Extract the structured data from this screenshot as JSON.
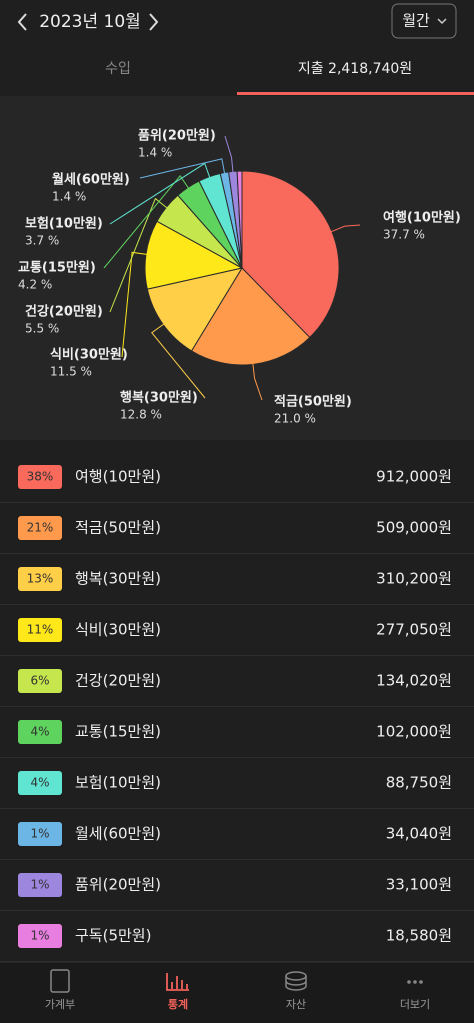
{
  "header": {
    "month": "2023년 10월",
    "period": "월간"
  },
  "tabs": {
    "income": "수입",
    "expense": "지출  2,418,740원"
  },
  "chart_data": {
    "type": "pie",
    "categories": [
      "여행(10만원)",
      "적금(50만원)",
      "행복(30만원)",
      "식비(30만원)",
      "건강(20만원)",
      "교통(15만원)",
      "보험(10만원)",
      "월세(60만원)",
      "품위(20만원)",
      null
    ],
    "values": [
      37.7,
      21.0,
      12.8,
      11.5,
      5.5,
      4.2,
      3.7,
      1.4,
      1.4,
      0.8
    ],
    "value_labels": [
      "37.7 %",
      "21.0 %",
      "12.8 %",
      "11.5 %",
      "5.5 %",
      "4.2 %",
      "3.7 %",
      "1.4 %",
      "1.4 %",
      null
    ],
    "colors": [
      "#fa6a5c",
      "#ff9a4c",
      "#ffcf48",
      "#ffe81a",
      "#c5e64c",
      "#5ed35e",
      "#5fe5d2",
      "#6cb6e6",
      "#9c86de",
      "#e77ee0"
    ]
  },
  "list": [
    {
      "badge": "38%",
      "name": "여행(10만원)",
      "amount": "912,000원",
      "color": "#fa6a5c"
    },
    {
      "badge": "21%",
      "name": "적금(50만원)",
      "amount": "509,000원",
      "color": "#ff9a4c"
    },
    {
      "badge": "13%",
      "name": "행복(30만원)",
      "amount": "310,200원",
      "color": "#ffcf48"
    },
    {
      "badge": "11%",
      "name": "식비(30만원)",
      "amount": "277,050원",
      "color": "#ffe81a"
    },
    {
      "badge": "6%",
      "name": "건강(20만원)",
      "amount": "134,020원",
      "color": "#c5e64c"
    },
    {
      "badge": "4%",
      "name": "교통(15만원)",
      "amount": "102,000원",
      "color": "#5ed35e"
    },
    {
      "badge": "4%",
      "name": "보험(10만원)",
      "amount": "88,750원",
      "color": "#5fe5d2"
    },
    {
      "badge": "1%",
      "name": "월세(60만원)",
      "amount": "34,040원",
      "color": "#6cb6e6"
    },
    {
      "badge": "1%",
      "name": "품위(20만원)",
      "amount": "33,100원",
      "color": "#9c86de"
    },
    {
      "badge": "1%",
      "name": "구독(5만원)",
      "amount": "18,580원",
      "color": "#e77ee0"
    }
  ],
  "nav": [
    "가계부",
    "통계",
    "자산",
    "더보기"
  ]
}
